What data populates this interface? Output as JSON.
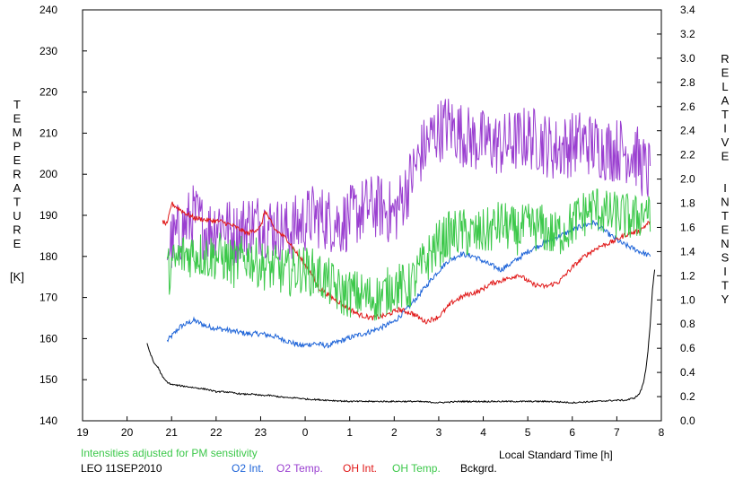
{
  "chart_data": {
    "type": "line",
    "title": "",
    "ylabel_left_letters": [
      "T",
      "E",
      "M",
      "P",
      "E",
      "R",
      "A",
      "T",
      "U",
      "R",
      "E"
    ],
    "ylabel_left_unit": "[K]",
    "ylabel_right_letters_1": [
      "R",
      "E",
      "L",
      "A",
      "T",
      "I",
      "V",
      "E"
    ],
    "ylabel_right_letters_2": [
      "I",
      "N",
      "T",
      "E",
      "N",
      "S",
      "I",
      "T",
      "Y"
    ],
    "xlabel": "Local Standard Time [h]",
    "xlim": [
      19,
      32
    ],
    "x_tick_values": [
      19,
      20,
      21,
      22,
      23,
      24,
      25,
      26,
      27,
      28,
      29,
      30,
      31,
      32
    ],
    "x_tick_labels": [
      "19",
      "20",
      "21",
      "22",
      "23",
      "0",
      "1",
      "2",
      "3",
      "4",
      "5",
      "6",
      "7",
      "8"
    ],
    "ylim_left": [
      140,
      240
    ],
    "y_left_ticks": [
      "140",
      "150",
      "160",
      "170",
      "180",
      "190",
      "200",
      "210",
      "220",
      "230",
      "240"
    ],
    "ylim_right": [
      0.0,
      3.4
    ],
    "y_right_ticks": [
      "0.0",
      "0.2",
      "0.4",
      "0.6",
      "0.8",
      "1.0",
      "1.2",
      "1.4",
      "1.6",
      "1.8",
      "2.0",
      "2.2",
      "2.4",
      "2.6",
      "2.8",
      "3.0",
      "3.2",
      "3.4"
    ],
    "grid": false,
    "note": "Intensities adjusted for PM sensitivity",
    "station_date": "LEO 11SEP2010",
    "series": [
      {
        "name": "O2 Int.",
        "axis": "right",
        "color": "#1e64d8",
        "x": [
          20.9,
          21.2,
          21.5,
          21.8,
          22.1,
          22.4,
          22.7,
          23.0,
          23.3,
          23.6,
          23.9,
          24.2,
          24.5,
          24.8,
          25.1,
          25.4,
          25.7,
          26.0,
          26.3,
          26.6,
          26.9,
          27.2,
          27.5,
          27.8,
          28.1,
          28.4,
          28.7,
          29.0,
          29.3,
          29.6,
          29.9,
          30.2,
          30.5,
          30.8,
          31.1,
          31.4,
          31.7,
          31.75
        ],
        "y": [
          0.66,
          0.78,
          0.83,
          0.78,
          0.76,
          0.74,
          0.72,
          0.72,
          0.7,
          0.66,
          0.62,
          0.64,
          0.62,
          0.66,
          0.7,
          0.73,
          0.77,
          0.82,
          0.93,
          1.06,
          1.2,
          1.32,
          1.38,
          1.36,
          1.3,
          1.25,
          1.32,
          1.4,
          1.46,
          1.51,
          1.56,
          1.61,
          1.64,
          1.55,
          1.47,
          1.42,
          1.37,
          1.36
        ]
      },
      {
        "name": "O2 Temp.",
        "axis": "left",
        "color": "#9a3fd0",
        "x": [
          20.9,
          21.2,
          21.5,
          21.8,
          22.1,
          22.4,
          22.7,
          23.0,
          23.3,
          23.6,
          23.9,
          24.2,
          24.5,
          24.8,
          25.1,
          25.4,
          25.7,
          26.0,
          26.3,
          26.6,
          26.9,
          27.2,
          27.5,
          27.8,
          28.1,
          28.4,
          28.7,
          29.0,
          29.3,
          29.6,
          29.9,
          30.2,
          30.5,
          30.8,
          31.1,
          31.4,
          31.7,
          31.75
        ],
        "y": [
          182,
          186,
          190,
          186,
          189,
          185,
          188,
          188,
          187,
          186,
          188,
          190,
          189,
          188,
          190,
          192,
          192,
          190,
          197,
          205,
          210,
          212,
          210,
          208,
          208,
          207,
          208,
          209,
          208,
          206,
          207,
          208,
          207,
          206,
          206,
          205,
          200,
          202
        ]
      },
      {
        "name": "OH Int.",
        "axis": "right",
        "color": "#e01818",
        "x": [
          20.8,
          20.9,
          21.0,
          21.1,
          21.3,
          21.5,
          21.8,
          22.1,
          22.4,
          22.7,
          23.0,
          23.1,
          23.3,
          23.6,
          23.9,
          24.1,
          24.3,
          24.6,
          24.9,
          25.2,
          25.5,
          25.8,
          26.1,
          26.4,
          26.7,
          27.0,
          27.3,
          27.6,
          27.9,
          28.2,
          28.5,
          28.8,
          29.1,
          29.4,
          29.7,
          30.0,
          30.3,
          30.6,
          30.9,
          31.2,
          31.5,
          31.75
        ],
        "y": [
          1.65,
          1.62,
          1.8,
          1.77,
          1.72,
          1.68,
          1.66,
          1.65,
          1.61,
          1.55,
          1.6,
          1.74,
          1.59,
          1.5,
          1.34,
          1.24,
          1.1,
          1.02,
          0.95,
          0.88,
          0.85,
          0.87,
          0.92,
          0.89,
          0.82,
          0.86,
          0.98,
          1.04,
          1.07,
          1.14,
          1.17,
          1.21,
          1.13,
          1.11,
          1.15,
          1.27,
          1.37,
          1.44,
          1.48,
          1.54,
          1.57,
          1.65
        ]
      },
      {
        "name": "OH Temp.",
        "axis": "left",
        "color": "#3cc84a",
        "x": [
          20.9,
          21.2,
          21.5,
          21.8,
          22.1,
          22.4,
          22.7,
          23.0,
          23.3,
          23.6,
          23.9,
          24.2,
          24.5,
          24.8,
          25.1,
          25.4,
          25.7,
          26.0,
          26.3,
          26.6,
          26.9,
          27.2,
          27.5,
          27.8,
          28.1,
          28.4,
          28.7,
          29.0,
          29.3,
          29.6,
          29.9,
          30.2,
          30.5,
          30.8,
          31.1,
          31.4,
          31.7,
          31.75
        ],
        "y": [
          176,
          180,
          181,
          180,
          180,
          178,
          180,
          178,
          177,
          176,
          177,
          176,
          174,
          171,
          171,
          170,
          170,
          173,
          172,
          177,
          182,
          185,
          186,
          185,
          186,
          188,
          186,
          187,
          187,
          185,
          187,
          190,
          192,
          190,
          190,
          189,
          192,
          186
        ]
      },
      {
        "name": "Bckgrd.",
        "axis": "right",
        "color": "#000000",
        "x": [
          20.45,
          20.5,
          20.6,
          20.7,
          20.8,
          20.9,
          21.0,
          21.2,
          21.4,
          21.6,
          21.8,
          22.0,
          22.2,
          22.4,
          22.6,
          22.8,
          23.0,
          23.2,
          23.4,
          23.6,
          23.8,
          24.0,
          24.5,
          25.0,
          25.5,
          26.0,
          26.5,
          27.0,
          27.5,
          28.0,
          28.5,
          29.0,
          29.5,
          30.0,
          30.5,
          31.0,
          31.2,
          31.4,
          31.5,
          31.55,
          31.6,
          31.65,
          31.7,
          31.75,
          31.8,
          31.85
        ],
        "y": [
          0.64,
          0.58,
          0.48,
          0.44,
          0.36,
          0.32,
          0.3,
          0.29,
          0.28,
          0.27,
          0.26,
          0.24,
          0.24,
          0.23,
          0.22,
          0.22,
          0.21,
          0.21,
          0.2,
          0.19,
          0.19,
          0.18,
          0.17,
          0.16,
          0.16,
          0.16,
          0.16,
          0.15,
          0.16,
          0.16,
          0.16,
          0.16,
          0.16,
          0.15,
          0.16,
          0.17,
          0.17,
          0.19,
          0.22,
          0.26,
          0.32,
          0.42,
          0.58,
          0.8,
          1.08,
          1.25
        ]
      }
    ]
  }
}
